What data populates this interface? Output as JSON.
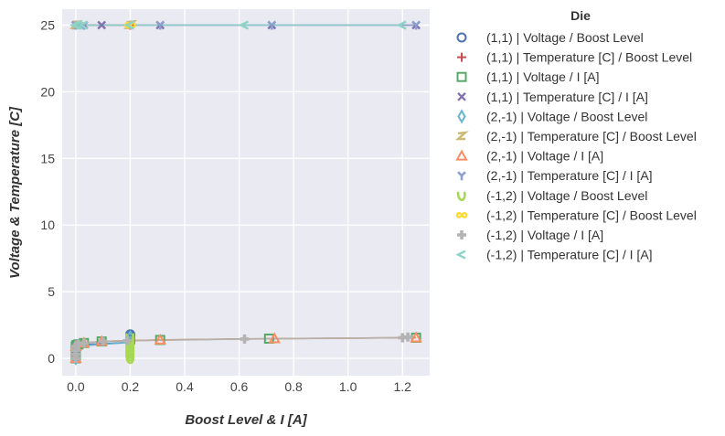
{
  "chart_data": {
    "type": "scatter",
    "xlabel": "Boost Level & I [A]",
    "ylabel": "Voltage & Temperature [C]",
    "xlim": [
      -0.05,
      1.3
    ],
    "ylim": [
      -1.3,
      26.2
    ],
    "x_ticks": [
      "0.0",
      "0.2",
      "0.4",
      "0.6",
      "0.8",
      "1.0",
      "1.2"
    ],
    "x_tick_values": [
      0.0,
      0.2,
      0.4,
      0.6,
      0.8,
      1.0,
      1.2
    ],
    "y_ticks": [
      "0",
      "5",
      "10",
      "15",
      "20",
      "25"
    ],
    "y_tick_values": [
      0,
      5,
      10,
      15,
      20,
      25
    ],
    "grid": true,
    "legend_title": "Die",
    "legend_position": "outside-right",
    "series": [
      {
        "name": "(1,1) | Voltage / Boost Level",
        "marker": "circle",
        "color": "#4c72b0",
        "x": [
          0.0,
          0.0,
          0.0,
          0.0,
          0.0,
          0.0,
          0.2,
          0.2,
          0.2,
          0.2,
          0.2
        ],
        "y": [
          0.0,
          0.6,
          0.8,
          0.9,
          1.0,
          1.0,
          1.2,
          1.4,
          1.6,
          1.7,
          1.8
        ]
      },
      {
        "name": "(1,1) | Temperature [C] / Boost Level",
        "marker": "plus",
        "color": "#c44e52",
        "x": [
          0.0,
          0.0,
          0.2,
          0.2
        ],
        "y": [
          25.0,
          25.0,
          25.0,
          25.0
        ]
      },
      {
        "name": "(1,1) | Voltage / I [A]",
        "marker": "square",
        "color": "#55a868",
        "x": [
          0.0,
          0.0,
          0.0,
          0.003,
          0.01,
          0.03,
          0.095,
          0.31,
          0.71,
          1.25
        ],
        "y": [
          0.0,
          0.6,
          0.9,
          1.0,
          1.05,
          1.15,
          1.27,
          1.38,
          1.48,
          1.55
        ]
      },
      {
        "name": "(1,1) | Temperature [C] / I [A]",
        "marker": "x",
        "color": "#8172b2",
        "x": [
          0.0,
          0.0,
          0.003,
          0.01,
          0.03,
          0.095,
          0.31,
          0.72,
          1.25
        ],
        "y": [
          25.0,
          25.0,
          25.0,
          25.0,
          25.0,
          25.0,
          25.0,
          25.0,
          25.0
        ]
      },
      {
        "name": "(2,-1) | Voltage / Boost Level",
        "marker": "thin_diamond",
        "color": "#64b5cd",
        "x": [
          0.0,
          0.0,
          0.2,
          0.2
        ],
        "y": [
          0.0,
          0.9,
          1.2,
          1.6
        ]
      },
      {
        "name": "(2,-1) | Temperature [C] / Boost Level",
        "marker": "z",
        "color": "#ccb974",
        "x": [
          0.0,
          0.2,
          0.2
        ],
        "y": [
          25.0,
          25.0,
          25.0
        ]
      },
      {
        "name": "(2,-1) | Voltage / I [A]",
        "marker": "triangle",
        "color": "#fc8d62",
        "x": [
          0.0,
          0.0,
          0.03,
          0.095,
          0.31,
          0.73,
          1.25
        ],
        "y": [
          0.0,
          0.9,
          1.15,
          1.27,
          1.38,
          1.48,
          1.55
        ]
      },
      {
        "name": "(2,-1) | Temperature [C] / I [A]",
        "marker": "tri_down",
        "color": "#8da0cb",
        "x": [
          0.0,
          0.03,
          0.31,
          0.72,
          1.25
        ],
        "y": [
          25.0,
          25.0,
          25.0,
          25.0,
          25.0
        ]
      },
      {
        "name": "(-1,2) | Voltage / Boost Level",
        "marker": "script_v",
        "color": "#a6d854",
        "x": [
          0.2,
          0.2,
          0.2,
          0.2,
          0.2,
          0.2,
          0.2,
          0.2,
          0.2,
          0.2,
          0.2
        ],
        "y": [
          0.0,
          0.2,
          0.4,
          0.6,
          0.8,
          1.0,
          1.2,
          1.3,
          1.4,
          1.5,
          1.6
        ]
      },
      {
        "name": "(-1,2) | Temperature [C] / Boost Level",
        "marker": "infinity",
        "color": "#ffd92f",
        "x": [
          0.2,
          0.2,
          0.2
        ],
        "y": [
          25.0,
          25.0,
          25.0
        ]
      },
      {
        "name": "(-1,2) | Voltage / I [A]",
        "marker": "plus_filled",
        "color": "#b3b3b3",
        "x": [
          0.0,
          0.0,
          0.0,
          0.0,
          0.01,
          0.03,
          0.1,
          0.19,
          0.62,
          1.2,
          1.22
        ],
        "y": [
          0.0,
          0.3,
          0.6,
          0.9,
          1.05,
          1.15,
          1.27,
          1.32,
          1.45,
          1.55,
          1.6
        ]
      },
      {
        "name": "(-1,2) | Temperature [C] / I [A]",
        "marker": "lt",
        "color": "#8dd3c7",
        "x": [
          0.0,
          0.003,
          0.01,
          0.03,
          0.2,
          0.62,
          1.2
        ],
        "y": [
          25.0,
          25.0,
          25.0,
          25.0,
          25.0,
          25.0,
          25.0
        ]
      }
    ]
  }
}
